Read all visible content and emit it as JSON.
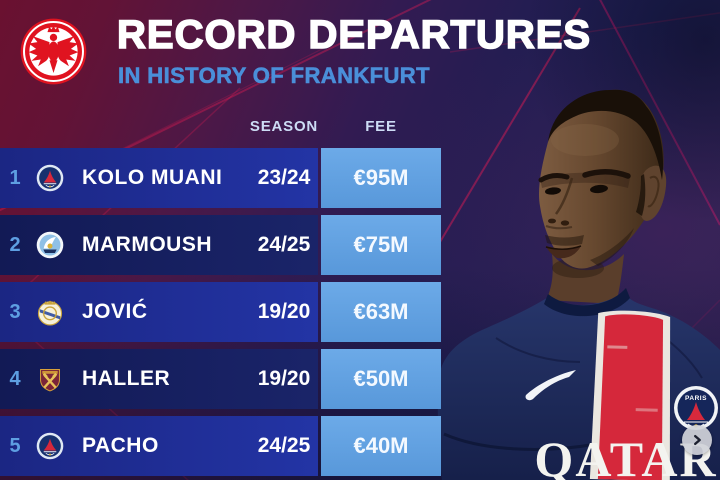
{
  "header": {
    "title": "RECORD DEPARTURES",
    "subtitle": "IN HISTORY OF FRANKFURT",
    "club_logo_icon": "eintracht-frankfurt-crest-icon"
  },
  "table": {
    "columns": {
      "season": "SEASON",
      "fee": "FEE"
    },
    "rows": [
      {
        "rank": "1",
        "badge": "psg",
        "player": "KOLO MUANI",
        "season": "23/24",
        "fee": "€95M"
      },
      {
        "rank": "2",
        "badge": "man-city",
        "player": "MARMOUSH",
        "season": "24/25",
        "fee": "€75M"
      },
      {
        "rank": "3",
        "badge": "real-madrid",
        "player": "JOVIĆ",
        "season": "19/20",
        "fee": "€63M"
      },
      {
        "rank": "4",
        "badge": "west-ham",
        "player": "HALLER",
        "season": "19/20",
        "fee": "€50M"
      },
      {
        "rank": "5",
        "badge": "psg",
        "player": "PACHO",
        "season": "24/25",
        "fee": "€40M"
      }
    ]
  },
  "player_image": {
    "shirt_sponsor": "QATAR",
    "crest_text": "PARIS"
  },
  "carousel": {
    "next_icon": "chevron-right-icon"
  },
  "colors": {
    "row_odd": "#1e2b92",
    "row_even": "#151e60",
    "fee_cell": "#61a3e3",
    "rank_blue": "#5e9fe2",
    "subtitle_blue": "#4a8fd9",
    "crest_red": "#e01320",
    "shirt_navy": "#1b2a5e",
    "stripe_red": "#d5283b",
    "background_maroon": "#6a1130",
    "background_navy": "#242058"
  },
  "chart_data": {
    "type": "table",
    "title": "RECORD DEPARTURES",
    "subtitle": "IN HISTORY OF FRANKFURT",
    "column_headers_visible": [
      "SEASON",
      "FEE"
    ],
    "columns": [
      "rank",
      "club_badge",
      "player",
      "season",
      "fee_eur_millions"
    ],
    "rows": [
      [
        "1",
        "psg",
        "KOLO MUANI",
        "23/24",
        95
      ],
      [
        "2",
        "man-city",
        "MARMOUSH",
        "24/25",
        75
      ],
      [
        "3",
        "real-madrid",
        "JOVIĆ",
        "19/20",
        63
      ],
      [
        "4",
        "west-ham",
        "HALLER",
        "19/20",
        50
      ],
      [
        "5",
        "psg",
        "PACHO",
        "24/25",
        40
      ]
    ],
    "fee_unit": "€M"
  }
}
